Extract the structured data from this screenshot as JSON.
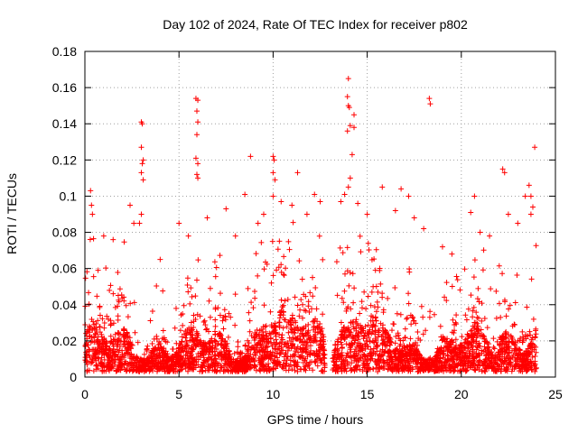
{
  "chart_data": {
    "type": "scatter",
    "title": "Day 102 of 2024, Rate Of TEC Index for receiver p802",
    "xlabel": "GPS time / hours",
    "ylabel": "ROTI / TECUs",
    "xlim": [
      0,
      25
    ],
    "ylim": [
      0,
      0.18
    ],
    "x_ticks": [
      0,
      5,
      10,
      15,
      20,
      25
    ],
    "y_ticks": [
      0,
      0.02,
      0.04,
      0.06,
      0.08,
      0.1,
      0.12,
      0.14,
      0.16,
      0.18
    ],
    "x_tick_labels": [
      "0",
      "5",
      "10",
      "15",
      "20",
      "25"
    ],
    "y_tick_labels": [
      "0",
      "0.02",
      "0.04",
      "0.06",
      "0.08",
      "0.1",
      "0.12",
      "0.14",
      "0.16",
      "0.18"
    ],
    "grid": true,
    "marker": "+",
    "marker_color": "#ff0000",
    "data_gap_hours": [
      12.75,
      13.15
    ],
    "points": [
      [
        0.3,
        0.103
      ],
      [
        0.35,
        0.095
      ],
      [
        0.4,
        0.09
      ],
      [
        1.0,
        0.078
      ],
      [
        1.5,
        0.076
      ],
      [
        2.4,
        0.095
      ],
      [
        2.6,
        0.085
      ],
      [
        3.0,
        0.141
      ],
      [
        3.05,
        0.14
      ],
      [
        3.0,
        0.127
      ],
      [
        3.1,
        0.12
      ],
      [
        3.05,
        0.118
      ],
      [
        3.0,
        0.113
      ],
      [
        3.1,
        0.109
      ],
      [
        3.0,
        0.09
      ],
      [
        2.9,
        0.085
      ],
      [
        4.0,
        0.065
      ],
      [
        5.0,
        0.085
      ],
      [
        5.5,
        0.078
      ],
      [
        5.9,
        0.154
      ],
      [
        6.0,
        0.153
      ],
      [
        5.95,
        0.147
      ],
      [
        6.0,
        0.141
      ],
      [
        5.95,
        0.134
      ],
      [
        5.9,
        0.121
      ],
      [
        6.0,
        0.118
      ],
      [
        5.95,
        0.112
      ],
      [
        6.0,
        0.11
      ],
      [
        6.5,
        0.088
      ],
      [
        7.5,
        0.093
      ],
      [
        8.0,
        0.078
      ],
      [
        8.5,
        0.101
      ],
      [
        8.8,
        0.122
      ],
      [
        9.2,
        0.085
      ],
      [
        9.5,
        0.09
      ],
      [
        10.0,
        0.122
      ],
      [
        10.05,
        0.12
      ],
      [
        10.0,
        0.113
      ],
      [
        10.1,
        0.109
      ],
      [
        10.0,
        0.1
      ],
      [
        11.0,
        0.095
      ],
      [
        11.3,
        0.113
      ],
      [
        11.8,
        0.09
      ],
      [
        12.2,
        0.101
      ],
      [
        12.5,
        0.097
      ],
      [
        13.6,
        0.097
      ],
      [
        13.8,
        0.101
      ],
      [
        14.0,
        0.165
      ],
      [
        13.95,
        0.155
      ],
      [
        14.0,
        0.15
      ],
      [
        14.05,
        0.149
      ],
      [
        13.95,
        0.136
      ],
      [
        14.1,
        0.139
      ],
      [
        14.3,
        0.138
      ],
      [
        14.3,
        0.145
      ],
      [
        14.2,
        0.123
      ],
      [
        14.1,
        0.11
      ],
      [
        14.0,
        0.105
      ],
      [
        14.5,
        0.096
      ],
      [
        15.0,
        0.09
      ],
      [
        15.8,
        0.105
      ],
      [
        16.5,
        0.092
      ],
      [
        16.8,
        0.104
      ],
      [
        17.2,
        0.1
      ],
      [
        17.5,
        0.088
      ],
      [
        18.0,
        0.082
      ],
      [
        18.3,
        0.154
      ],
      [
        18.35,
        0.151
      ],
      [
        19.0,
        0.072
      ],
      [
        19.5,
        0.068
      ],
      [
        20.5,
        0.091
      ],
      [
        20.7,
        0.1
      ],
      [
        21.0,
        0.08
      ],
      [
        21.5,
        0.078
      ],
      [
        22.2,
        0.115
      ],
      [
        22.3,
        0.113
      ],
      [
        22.5,
        0.09
      ],
      [
        23.0,
        0.085
      ],
      [
        23.4,
        0.1
      ],
      [
        23.6,
        0.106
      ],
      [
        23.7,
        0.1
      ],
      [
        23.9,
        0.127
      ],
      [
        23.8,
        0.094
      ],
      [
        23.7,
        0.09
      ]
    ]
  }
}
